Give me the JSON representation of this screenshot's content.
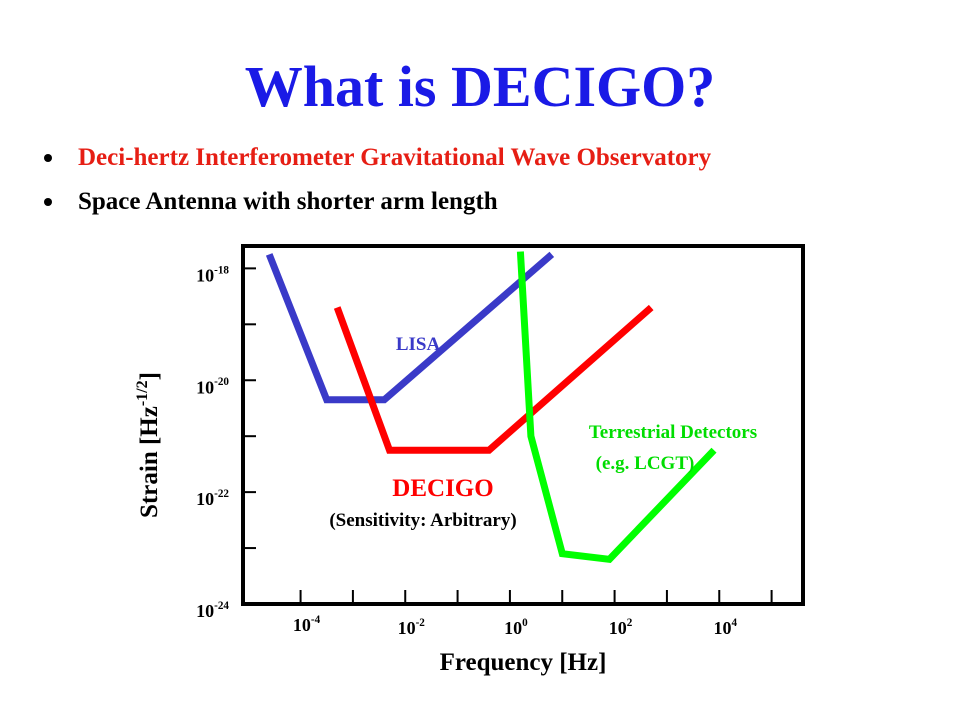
{
  "slide": {
    "title": "What is DECIGO?",
    "bullets": [
      {
        "text": "Deci-hertz Interferometer Gravitational Wave Observatory",
        "color": "#e61e14"
      },
      {
        "text": "Space Antenna with shorter arm length",
        "color": "#000000"
      }
    ]
  },
  "chart_data": {
    "type": "line",
    "xlabel": "Frequency [Hz]",
    "ylabel": {
      "main": "Strain [Hz",
      "sup": "-1/2",
      "end": "]"
    },
    "x_scale": "log",
    "y_scale": "log",
    "xlim_exp": [
      -5.1,
      5.6
    ],
    "ylim_exp": [
      -24,
      -17.6
    ],
    "x_ticks": [
      {
        "base": "10",
        "exp": "-4",
        "value_exp": -4
      },
      {
        "base": "10",
        "exp": "-2",
        "value_exp": -2
      },
      {
        "base": "10",
        "exp": "0",
        "value_exp": 0
      },
      {
        "base": "10",
        "exp": "2",
        "value_exp": 2
      },
      {
        "base": "10",
        "exp": "4",
        "value_exp": 4
      }
    ],
    "x_minor_exp": [
      -3,
      -1,
      1,
      3,
      5
    ],
    "y_ticks": [
      {
        "base": "10",
        "exp": "-18",
        "value_exp": -18
      },
      {
        "base": "10",
        "exp": "-20",
        "value_exp": -20
      },
      {
        "base": "10",
        "exp": "-22",
        "value_exp": -22
      },
      {
        "base": "10",
        "exp": "-24",
        "value_exp": -24
      }
    ],
    "y_minor_exp": [
      -19,
      -21,
      -23
    ],
    "series": [
      {
        "name": "LISA",
        "color": "#3a3ac8",
        "points_exp": [
          [
            -4.6,
            -17.75
          ],
          [
            -3.5,
            -20.35
          ],
          [
            -2.4,
            -20.35
          ],
          [
            0.8,
            -17.75
          ]
        ]
      },
      {
        "name": "DECIGO",
        "color": "#ff0000",
        "points_exp": [
          [
            -3.3,
            -18.7
          ],
          [
            -2.3,
            -21.25
          ],
          [
            -0.4,
            -21.25
          ],
          [
            2.7,
            -18.7
          ]
        ]
      },
      {
        "name": "Terrestrial Detectors",
        "color": "#00ff00",
        "points_exp": [
          [
            0.2,
            -17.7
          ],
          [
            0.4,
            -21.0
          ],
          [
            1.0,
            -23.1
          ],
          [
            1.9,
            -23.2
          ],
          [
            3.9,
            -21.25
          ]
        ]
      }
    ],
    "annotations": {
      "lisa": "LISA",
      "decigo": "DECIGO",
      "decigo_note": "(Sensitivity: Arbitrary)",
      "terrestrial": "Terrestrial Detectors",
      "terrestrial_note": "(e.g. LCGT)"
    }
  }
}
